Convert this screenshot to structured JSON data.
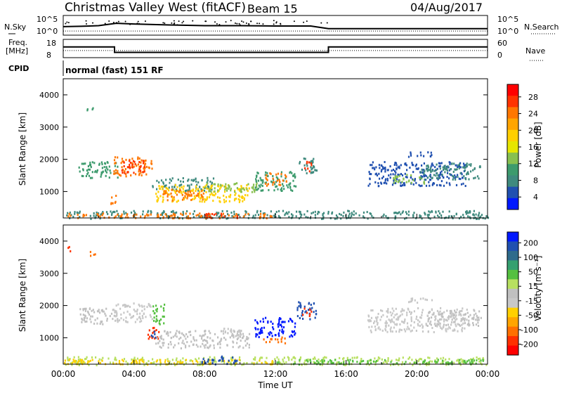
{
  "header": {
    "station": "Christmas Valley West (fitACF)",
    "beam": "Beam 15",
    "date": "04/Aug/2017"
  },
  "side_labels": {
    "nsky": "N.Sky",
    "nsky_top": "10^5",
    "nsky_bottom": "10^0",
    "nsearch": "N.Search",
    "nsearch_top": "10^5",
    "nsearch_bottom": "10^0",
    "freq_1": "Freq.",
    "freq_2": "[MHz]",
    "freq_top": "18",
    "freq_bottom": "8",
    "nave": "Nave",
    "nave_top": "60",
    "nave_bottom": "0",
    "cpid": "CPID",
    "cpid_text": "normal (fast) 151 RF"
  },
  "chart_data": [
    {
      "type": "line",
      "title": "",
      "series": [
        {
          "name": "N.Sky",
          "x": [
            0,
            1,
            2,
            3,
            4,
            6,
            8,
            10,
            12,
            14,
            15,
            16,
            18,
            20,
            22,
            24
          ],
          "values": [
            2.1,
            2.2,
            2.4,
            3.1,
            2.9,
            2.6,
            2.4,
            2.4,
            2.3,
            2.3,
            1.5,
            1.5,
            1.5,
            1.5,
            1.5,
            1.5
          ]
        },
        {
          "name": "N.Search",
          "x": [
            0,
            4,
            8,
            12,
            16,
            20,
            24
          ],
          "values": [
            0.8,
            0.8,
            0.8,
            0.8,
            0.8,
            0.8,
            0.8
          ]
        }
      ],
      "xlim": [
        0,
        24
      ],
      "ylim_log": [
        "10^0",
        "10^5"
      ]
    },
    {
      "type": "line",
      "series": [
        {
          "name": "Freq.",
          "x": [
            0,
            2.9,
            2.9,
            15,
            15,
            24
          ],
          "values": [
            14,
            14,
            10.5,
            10.5,
            14,
            14
          ]
        },
        {
          "name": "Nave",
          "x": [
            0,
            24
          ],
          "values": [
            22,
            22
          ]
        }
      ],
      "xlim": [
        0,
        24
      ],
      "ylim_left": [
        8,
        18
      ],
      "ylim_right": [
        0,
        60
      ]
    },
    {
      "type": "heatmap",
      "quantity": "Power",
      "unit": "dB",
      "colorbar_label": "Power [dB]",
      "colorbar_ticks": [
        "28",
        "24",
        "20",
        "16",
        "12",
        "8",
        "4"
      ],
      "colorbar_colors": [
        "#ff0000",
        "#ff3300",
        "#ff7700",
        "#ffa500",
        "#ffcf00",
        "#e6e600",
        "#88c050",
        "#3d9b6d",
        "#3f8a7e",
        "#2050b0",
        "#0018ff"
      ],
      "xlim_hours": [
        0,
        24
      ],
      "ylim_km": [
        180,
        4500
      ],
      "ylabel": "Slant Range [km]",
      "yticks": [
        "1000",
        "2000",
        "3000",
        "4000"
      ],
      "regions": [
        {
          "t0": 0.8,
          "t1": 3.1,
          "r0": 1450,
          "r1": 1950,
          "color": "#3d9b6d"
        },
        {
          "t0": 2.8,
          "t1": 5.0,
          "r0": 1500,
          "r1": 2100,
          "color": "#ff7700"
        },
        {
          "t0": 3.2,
          "t1": 4.6,
          "r0": 1600,
          "r1": 2000,
          "color": "#ff3300"
        },
        {
          "t0": 5.0,
          "t1": 8.5,
          "r0": 1050,
          "r1": 1450,
          "color": "#3f8a7e"
        },
        {
          "t0": 5.2,
          "t1": 10.5,
          "r0": 700,
          "r1": 1250,
          "color": "#ffcf00"
        },
        {
          "t0": 5.6,
          "t1": 8.0,
          "r0": 750,
          "r1": 1100,
          "color": "#ff7700"
        },
        {
          "t0": 8.0,
          "t1": 11.0,
          "r0": 1000,
          "r1": 1300,
          "color": "#88c050"
        },
        {
          "t0": 10.8,
          "t1": 13.2,
          "r0": 1050,
          "r1": 1650,
          "color": "#3d9b6d"
        },
        {
          "t0": 11.3,
          "t1": 12.6,
          "r0": 1200,
          "r1": 1600,
          "color": "#ff7700"
        },
        {
          "t0": 13.2,
          "t1": 14.3,
          "r0": 1600,
          "r1": 2100,
          "color": "#3f8a7e"
        },
        {
          "t0": 13.6,
          "t1": 14.0,
          "r0": 1650,
          "r1": 2000,
          "color": "#ff3300"
        },
        {
          "t0": 17.2,
          "t1": 22.8,
          "r0": 1200,
          "r1": 1950,
          "color": "#2050b0"
        },
        {
          "t0": 18.6,
          "t1": 20.4,
          "r0": 1250,
          "r1": 1550,
          "color": "#88c050"
        },
        {
          "t0": 20.2,
          "t1": 23.6,
          "r0": 1400,
          "r1": 1900,
          "color": "#3f8a7e"
        },
        {
          "t0": 19.5,
          "t1": 21.0,
          "r0": 2100,
          "r1": 2250,
          "color": "#2050b0"
        },
        {
          "t0": 0.0,
          "t1": 24.0,
          "r0": 180,
          "r1": 430,
          "color": "#3f8a7e"
        },
        {
          "t0": 0.0,
          "t1": 12.0,
          "r0": 200,
          "r1": 350,
          "color": "#ff7700"
        },
        {
          "t0": 8.0,
          "t1": 10.0,
          "r0": 200,
          "r1": 350,
          "color": "#ff3300"
        },
        {
          "t0": 1.3,
          "t1": 1.7,
          "r0": 3550,
          "r1": 3750,
          "color": "#3d9b6d"
        },
        {
          "t0": 2.6,
          "t1": 3.0,
          "r0": 600,
          "r1": 900,
          "color": "#ff7700"
        }
      ]
    },
    {
      "type": "heatmap",
      "quantity": "Velocity",
      "unit": "m s-1",
      "colorbar_label": "Velocity [m s⁻¹]",
      "colorbar_ticks": [
        "200",
        "100",
        "50",
        "15",
        "-15",
        "-50",
        "-100",
        "-200"
      ],
      "colorbar_colors": [
        "#0018ff",
        "#2050b0",
        "#2e6b8b",
        "#35a070",
        "#55c040",
        "#b8e060",
        "#c0c0c0",
        "#c8c8c8",
        "#ffd000",
        "#ffa500",
        "#ff7000",
        "#ff3000",
        "#ff0000"
      ],
      "xlim_hours": [
        0,
        24
      ],
      "xticks": [
        "00:00",
        "04:00",
        "08:00",
        "12:00",
        "16:00",
        "20:00",
        "00:00"
      ],
      "xlabel": "Time UT",
      "ylim_km": [
        180,
        4500
      ],
      "ylabel": "Slant Range [km]",
      "yticks": [
        "1000",
        "2000",
        "3000",
        "4000"
      ],
      "regions": [
        {
          "t0": 0.8,
          "t1": 3.1,
          "r0": 1450,
          "r1": 1950,
          "color": "#c0c0c0"
        },
        {
          "t0": 2.8,
          "t1": 5.0,
          "r0": 1500,
          "r1": 2100,
          "color": "#c8c8c8"
        },
        {
          "t0": 4.7,
          "t1": 5.4,
          "r0": 950,
          "r1": 1350,
          "color": "#ff3000"
        },
        {
          "t0": 4.9,
          "t1": 5.2,
          "r0": 1000,
          "r1": 1300,
          "color": "#2050b0"
        },
        {
          "t0": 5.2,
          "t1": 10.5,
          "r0": 700,
          "r1": 1250,
          "color": "#c0c0c0"
        },
        {
          "t0": 5.0,
          "t1": 5.7,
          "r0": 1450,
          "r1": 2100,
          "color": "#55c040"
        },
        {
          "t0": 9.0,
          "t1": 10.2,
          "r0": 1050,
          "r1": 1350,
          "color": "#c8c8c8"
        },
        {
          "t0": 10.8,
          "t1": 13.1,
          "r0": 1050,
          "r1": 1650,
          "color": "#0018ff"
        },
        {
          "t0": 11.3,
          "t1": 12.6,
          "r0": 850,
          "r1": 1050,
          "color": "#ff7000"
        },
        {
          "t0": 13.2,
          "t1": 14.3,
          "r0": 1600,
          "r1": 2150,
          "color": "#2050b0"
        },
        {
          "t0": 13.5,
          "t1": 14.0,
          "r0": 1700,
          "r1": 1950,
          "color": "#ff3000"
        },
        {
          "t0": 17.2,
          "t1": 22.8,
          "r0": 1200,
          "r1": 1950,
          "color": "#c8c8c8"
        },
        {
          "t0": 20.5,
          "t1": 23.6,
          "r0": 1400,
          "r1": 1900,
          "color": "#c0c0c0"
        },
        {
          "t0": 19.5,
          "t1": 21.0,
          "r0": 2100,
          "r1": 2250,
          "color": "#c8c8c8"
        },
        {
          "t0": 0.0,
          "t1": 24.0,
          "r0": 180,
          "r1": 430,
          "color": "#b8e060"
        },
        {
          "t0": 0.0,
          "t1": 12.0,
          "r0": 200,
          "r1": 350,
          "color": "#ffd000"
        },
        {
          "t0": 7.8,
          "t1": 9.8,
          "r0": 200,
          "r1": 450,
          "color": "#2050b0"
        },
        {
          "t0": 12.0,
          "t1": 24.0,
          "r0": 200,
          "r1": 350,
          "color": "#55c040"
        },
        {
          "t0": 0.2,
          "t1": 0.5,
          "r0": 3650,
          "r1": 3850,
          "color": "#ff3000"
        },
        {
          "t0": 1.4,
          "t1": 1.8,
          "r0": 3550,
          "r1": 3750,
          "color": "#ff7000"
        }
      ]
    }
  ]
}
